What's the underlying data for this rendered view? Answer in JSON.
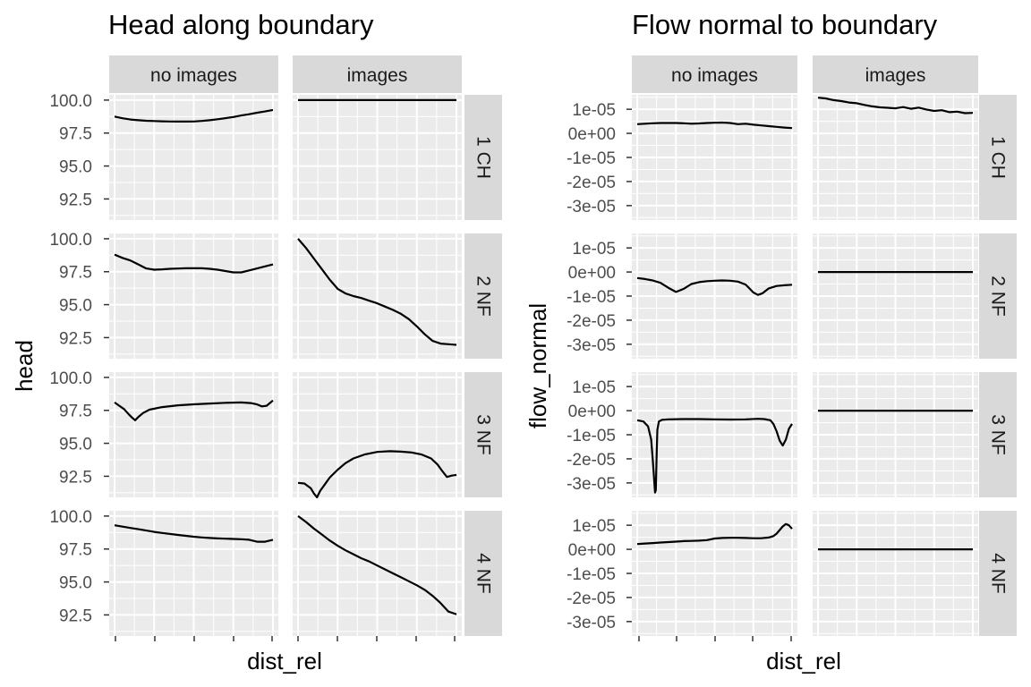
{
  "chart_data": [
    {
      "type": "line",
      "title": "Head along boundary",
      "xlabel": "dist_rel",
      "ylabel": "head",
      "columns": [
        "no images",
        "images"
      ],
      "rows": [
        "1 CH",
        "2 NF",
        "3 NF",
        "4 NF"
      ],
      "xlim": [
        0,
        1
      ],
      "ylim": [
        90.9,
        100.4
      ],
      "yticks": [
        "100.0",
        "97.5",
        "95.0",
        "92.5"
      ],
      "ytick_values": [
        100.0,
        97.5,
        95.0,
        92.5
      ],
      "x_tick_labels_shown": false,
      "grid": true,
      "panels": [
        {
          "row": "1 CH",
          "col": "no images",
          "x": [
            0,
            0.05,
            0.1,
            0.15,
            0.2,
            0.25,
            0.3,
            0.35,
            0.4,
            0.45,
            0.5,
            0.55,
            0.6,
            0.65,
            0.7,
            0.75,
            0.8,
            0.85,
            0.9,
            0.95,
            1.0
          ],
          "y": [
            98.75,
            98.62,
            98.53,
            98.47,
            98.43,
            98.41,
            98.39,
            98.38,
            98.37,
            98.37,
            98.38,
            98.42,
            98.47,
            98.55,
            98.63,
            98.72,
            98.83,
            98.93,
            99.04,
            99.14,
            99.25
          ]
        },
        {
          "row": "1 CH",
          "col": "images",
          "x": [
            0,
            0.5,
            1.0
          ],
          "y": [
            100.0,
            100.0,
            100.0
          ]
        },
        {
          "row": "2 NF",
          "col": "no images",
          "x": [
            0,
            0.05,
            0.1,
            0.15,
            0.2,
            0.25,
            0.3,
            0.35,
            0.4,
            0.45,
            0.5,
            0.55,
            0.6,
            0.65,
            0.7,
            0.75,
            0.8,
            0.85,
            0.9,
            0.95,
            1.0
          ],
          "y": [
            98.8,
            98.55,
            98.35,
            98.05,
            97.75,
            97.65,
            97.68,
            97.72,
            97.74,
            97.76,
            97.77,
            97.76,
            97.72,
            97.65,
            97.55,
            97.45,
            97.45,
            97.6,
            97.75,
            97.9,
            98.05
          ]
        },
        {
          "row": "2 NF",
          "col": "images",
          "x": [
            0,
            0.05,
            0.1,
            0.15,
            0.2,
            0.25,
            0.3,
            0.35,
            0.4,
            0.45,
            0.5,
            0.55,
            0.6,
            0.65,
            0.7,
            0.75,
            0.8,
            0.85,
            0.9,
            0.95,
            1.0
          ],
          "y": [
            100.0,
            99.3,
            98.5,
            97.7,
            96.9,
            96.2,
            95.85,
            95.65,
            95.5,
            95.3,
            95.1,
            94.85,
            94.6,
            94.3,
            93.9,
            93.35,
            92.75,
            92.25,
            92.05,
            92.0,
            91.95
          ]
        },
        {
          "row": "3 NF",
          "col": "no images",
          "x": [
            0,
            0.03,
            0.06,
            0.09,
            0.11,
            0.13,
            0.15,
            0.18,
            0.22,
            0.3,
            0.4,
            0.5,
            0.6,
            0.7,
            0.8,
            0.86,
            0.9,
            0.93,
            0.96,
            0.98,
            1.0
          ],
          "y": [
            98.1,
            97.85,
            97.6,
            97.2,
            96.95,
            96.75,
            97.0,
            97.3,
            97.55,
            97.75,
            97.88,
            97.96,
            98.02,
            98.07,
            98.1,
            98.05,
            97.95,
            97.8,
            97.85,
            98.05,
            98.25
          ]
        },
        {
          "row": "3 NF",
          "col": "images",
          "x": [
            0,
            0.04,
            0.08,
            0.1,
            0.12,
            0.14,
            0.17,
            0.2,
            0.25,
            0.3,
            0.35,
            0.42,
            0.5,
            0.58,
            0.65,
            0.72,
            0.78,
            0.84,
            0.88,
            0.91,
            0.94,
            0.97,
            1.0
          ],
          "y": [
            92.0,
            91.95,
            91.6,
            91.2,
            90.9,
            91.4,
            91.9,
            92.4,
            93.0,
            93.5,
            93.85,
            94.15,
            94.35,
            94.4,
            94.37,
            94.3,
            94.15,
            93.85,
            93.4,
            92.9,
            92.45,
            92.55,
            92.6
          ]
        },
        {
          "row": "4 NF",
          "col": "no images",
          "x": [
            0,
            0.05,
            0.1,
            0.15,
            0.2,
            0.25,
            0.3,
            0.35,
            0.4,
            0.45,
            0.5,
            0.55,
            0.6,
            0.65,
            0.7,
            0.75,
            0.8,
            0.85,
            0.9,
            0.95,
            1.0
          ],
          "y": [
            99.3,
            99.2,
            99.1,
            99.0,
            98.9,
            98.8,
            98.72,
            98.64,
            98.57,
            98.5,
            98.43,
            98.38,
            98.34,
            98.3,
            98.28,
            98.26,
            98.24,
            98.2,
            98.05,
            98.05,
            98.2
          ]
        },
        {
          "row": "4 NF",
          "col": "images",
          "x": [
            0,
            0.05,
            0.1,
            0.15,
            0.2,
            0.25,
            0.3,
            0.35,
            0.4,
            0.45,
            0.5,
            0.55,
            0.6,
            0.65,
            0.7,
            0.75,
            0.8,
            0.85,
            0.9,
            0.95,
            1.0
          ],
          "y": [
            100.0,
            99.55,
            99.05,
            98.6,
            98.15,
            97.75,
            97.4,
            97.1,
            96.8,
            96.55,
            96.25,
            95.95,
            95.65,
            95.35,
            95.05,
            94.75,
            94.4,
            93.95,
            93.4,
            92.75,
            92.55
          ]
        }
      ]
    },
    {
      "type": "line",
      "title": "Flow normal to boundary",
      "xlabel": "dist_rel",
      "ylabel": "flow_normal",
      "columns": [
        "no images",
        "images"
      ],
      "rows": [
        "1 CH",
        "2 NF",
        "3 NF",
        "4 NF"
      ],
      "xlim": [
        0,
        1
      ],
      "ylim": [
        -3.6e-05,
        1.6e-05
      ],
      "yticks": [
        "1e-05",
        "0e+00",
        "-1e-05",
        "-2e-05",
        "-3e-05"
      ],
      "ytick_values": [
        1e-05,
        0,
        -1e-05,
        -2e-05,
        -3e-05
      ],
      "x_tick_labels_shown": false,
      "grid": true,
      "panels": [
        {
          "row": "1 CH",
          "col": "no images",
          "x": [
            0,
            0.05,
            0.1,
            0.15,
            0.2,
            0.25,
            0.3,
            0.35,
            0.4,
            0.45,
            0.5,
            0.55,
            0.6,
            0.65,
            0.7,
            0.75,
            0.8,
            0.85,
            0.9,
            0.95,
            1.0
          ],
          "y": [
            3.8e-06,
            4e-06,
            4.2e-06,
            4.3e-06,
            4.3e-06,
            4.3e-06,
            4.2e-06,
            4e-06,
            4.1e-06,
            4.3e-06,
            4.4e-06,
            4.5e-06,
            4.3e-06,
            3.8e-06,
            4e-06,
            3.6e-06,
            3.3e-06,
            3e-06,
            2.7e-06,
            2.4e-06,
            2.2e-06
          ]
        },
        {
          "row": "1 CH",
          "col": "images",
          "x": [
            0,
            0.05,
            0.1,
            0.15,
            0.2,
            0.25,
            0.3,
            0.35,
            0.4,
            0.45,
            0.5,
            0.55,
            0.6,
            0.65,
            0.7,
            0.75,
            0.8,
            0.85,
            0.9,
            0.95,
            1.0
          ],
          "y": [
            1.48e-05,
            1.45e-05,
            1.38e-05,
            1.34e-05,
            1.28e-05,
            1.25e-05,
            1.18e-05,
            1.12e-05,
            1.08e-05,
            1.06e-05,
            1.04e-05,
            1.09e-05,
            1.02e-05,
            1.07e-05,
            9.9e-06,
            9.3e-06,
            9.6e-06,
            8.8e-06,
            9e-06,
            8.4e-06,
            8.5e-06
          ]
        },
        {
          "row": "2 NF",
          "col": "no images",
          "x": [
            0,
            0.05,
            0.1,
            0.15,
            0.2,
            0.25,
            0.3,
            0.35,
            0.4,
            0.45,
            0.5,
            0.55,
            0.6,
            0.65,
            0.7,
            0.72,
            0.75,
            0.78,
            0.81,
            0.85,
            0.9,
            0.95,
            1.0
          ],
          "y": [
            -2.5e-06,
            -2.9e-06,
            -3.5e-06,
            -4.5e-06,
            -6.5e-06,
            -8.3e-06,
            -7e-06,
            -5e-06,
            -4.2e-06,
            -3.8e-06,
            -3.6e-06,
            -3.5e-06,
            -3.6e-06,
            -4e-06,
            -5.2e-06,
            -6.5e-06,
            -8.5e-06,
            -9.5e-06,
            -8.8e-06,
            -6.8e-06,
            -5.8e-06,
            -5.5e-06,
            -5.3e-06
          ]
        },
        {
          "row": "2 NF",
          "col": "images",
          "x": [
            0,
            0.5,
            1.0
          ],
          "y": [
            0,
            0,
            0
          ]
        },
        {
          "row": "3 NF",
          "col": "no images",
          "x": [
            0,
            0.04,
            0.07,
            0.09,
            0.1,
            0.11,
            0.115,
            0.12,
            0.125,
            0.13,
            0.14,
            0.16,
            0.2,
            0.3,
            0.4,
            0.5,
            0.6,
            0.7,
            0.78,
            0.82,
            0.86,
            0.88,
            0.9,
            0.92,
            0.94,
            0.96,
            0.98,
            1.0
          ],
          "y": [
            -4e-06,
            -4.5e-06,
            -6.5e-06,
            -1.2e-05,
            -2e-05,
            -2.9e-05,
            -3.4e-05,
            -3.3e-05,
            -2e-05,
            -8e-06,
            -4.5e-06,
            -3.8e-06,
            -3.6e-06,
            -3.5e-06,
            -3.5e-06,
            -3.6e-06,
            -3.7e-06,
            -3.6e-06,
            -3.4e-06,
            -3.5e-06,
            -4e-06,
            -5.5e-06,
            -8.5e-06,
            -1.25e-05,
            -1.45e-05,
            -1.2e-05,
            -7.5e-06,
            -5.5e-06
          ]
        },
        {
          "row": "3 NF",
          "col": "images",
          "x": [
            0,
            0.5,
            1.0
          ],
          "y": [
            0,
            0,
            0
          ]
        },
        {
          "row": "4 NF",
          "col": "no images",
          "x": [
            0,
            0.05,
            0.1,
            0.15,
            0.2,
            0.25,
            0.3,
            0.35,
            0.4,
            0.45,
            0.5,
            0.55,
            0.6,
            0.65,
            0.7,
            0.75,
            0.8,
            0.85,
            0.88,
            0.9,
            0.92,
            0.94,
            0.96,
            0.98,
            1.0
          ],
          "y": [
            2.2e-06,
            2.4e-06,
            2.6e-06,
            2.8e-06,
            3e-06,
            3.2e-06,
            3.4e-06,
            3.5e-06,
            3.6e-06,
            3.8e-06,
            4.5e-06,
            4.7e-06,
            4.8e-06,
            4.8e-06,
            4.7e-06,
            4.6e-06,
            4.6e-06,
            4.9e-06,
            5.5e-06,
            6.5e-06,
            8e-06,
            9.5e-06,
            1.05e-05,
            1e-05,
            8.5e-06
          ]
        },
        {
          "row": "4 NF",
          "col": "images",
          "x": [
            0,
            0.5,
            1.0
          ],
          "y": [
            0,
            0,
            0
          ]
        }
      ]
    }
  ]
}
